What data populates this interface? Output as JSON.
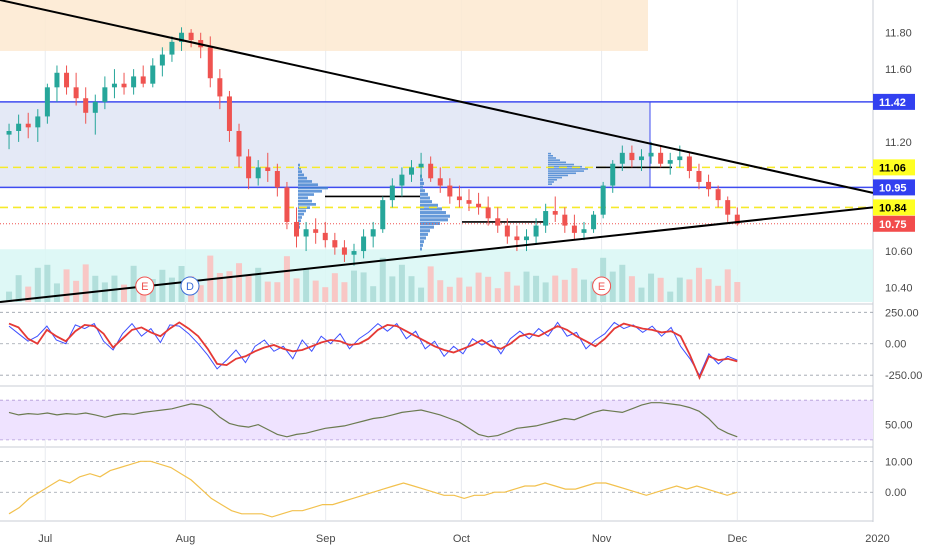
{
  "colors": {
    "up": "#26a69a",
    "down": "#ef5350",
    "volume_up": "#b2dfdb",
    "volume_down": "#f8c7c5",
    "axis_text": "#4a4a4a",
    "grid": "#e8eaef",
    "cci_primary": "#e53935",
    "cci_secondary": "#3f51ff",
    "rsi_line": "#6b7a50",
    "rsi_band": "#efe3ff",
    "momentum_line": "#f2c14e",
    "zone_orange": "#fde9d0",
    "zone_blue": "#dfe5f5",
    "zone_cyan": "#d8f7f5",
    "box_border": "#3f4cf0",
    "level_yellow": "#f6ea2a",
    "trendline": "#000000",
    "label_bg_blue": "#3240f0",
    "label_bg_yellow": "#ffff22",
    "label_bg_red": "#f24c4c",
    "volume_profile": "#3e7fd0"
  },
  "chart_data": [
    {
      "type": "candlestick",
      "title": "",
      "ylim": [
        10.32,
        11.98
      ],
      "y_ticks": [
        "11.80",
        "11.60",
        "11.20",
        "10.60",
        "10.40"
      ],
      "x_ticks": [
        "Jul",
        "Aug",
        "Sep",
        "Oct",
        "Nov",
        "Dec",
        "2020"
      ],
      "price_labels": [
        {
          "text": "11.42",
          "style": "blue"
        },
        {
          "text": "11.06",
          "style": "yellow"
        },
        {
          "text": "10.95",
          "style": "blue"
        },
        {
          "text": "10.84",
          "style": "yellow"
        },
        {
          "text": "10.75",
          "style": "red"
        }
      ],
      "horizontal_levels": [
        {
          "value": 11.06,
          "style": "yellow-dashed"
        },
        {
          "value": 10.84,
          "style": "yellow-dashed"
        },
        {
          "value": 10.75,
          "style": "red-dotted"
        }
      ],
      "zones": [
        {
          "name": "orange",
          "from": 11.7,
          "to": 11.98
        },
        {
          "name": "blue",
          "from": 10.95,
          "to": 11.42
        },
        {
          "name": "cyan",
          "from": 10.32,
          "to": 10.61
        }
      ],
      "event_markers": [
        {
          "label": "E",
          "date": "Jul 23"
        },
        {
          "label": "D",
          "date": "Aug 2"
        },
        {
          "label": "E",
          "date": "Nov 1"
        }
      ],
      "trendlines": [
        {
          "from": [
            "Jun 21",
            11.98
          ],
          "to": [
            "Dec 31",
            10.92
          ]
        },
        {
          "from": [
            "Jun 21",
            10.32
          ],
          "to": [
            "Dec 31",
            10.84
          ]
        }
      ],
      "ohlc_series": [
        [
          11.24,
          11.3,
          11.16,
          11.26
        ],
        [
          11.26,
          11.35,
          11.2,
          11.3
        ],
        [
          11.3,
          11.36,
          11.22,
          11.28
        ],
        [
          11.28,
          11.38,
          11.2,
          11.34
        ],
        [
          11.34,
          11.52,
          11.3,
          11.5
        ],
        [
          11.5,
          11.62,
          11.42,
          11.58
        ],
        [
          11.58,
          11.62,
          11.46,
          11.5
        ],
        [
          11.5,
          11.58,
          11.4,
          11.44
        ],
        [
          11.44,
          11.5,
          11.3,
          11.36
        ],
        [
          11.36,
          11.46,
          11.24,
          11.42
        ],
        [
          11.42,
          11.56,
          11.38,
          11.5
        ],
        [
          11.5,
          11.6,
          11.44,
          11.52
        ],
        [
          11.52,
          11.58,
          11.46,
          11.5
        ],
        [
          11.5,
          11.6,
          11.46,
          11.56
        ],
        [
          11.56,
          11.62,
          11.5,
          11.52
        ],
        [
          11.52,
          11.66,
          11.5,
          11.62
        ],
        [
          11.62,
          11.72,
          11.56,
          11.68
        ],
        [
          11.68,
          11.78,
          11.64,
          11.75
        ],
        [
          11.75,
          11.83,
          11.7,
          11.8
        ],
        [
          11.8,
          11.82,
          11.72,
          11.76
        ],
        [
          11.76,
          11.8,
          11.66,
          11.72
        ],
        [
          11.72,
          11.78,
          11.5,
          11.55
        ],
        [
          11.55,
          11.6,
          11.38,
          11.45
        ],
        [
          11.45,
          11.48,
          11.2,
          11.26
        ],
        [
          11.26,
          11.3,
          11.06,
          11.12
        ],
        [
          11.12,
          11.16,
          10.94,
          11.0
        ],
        [
          11.0,
          11.1,
          10.96,
          11.06
        ],
        [
          11.06,
          11.14,
          10.98,
          11.04
        ],
        [
          11.04,
          11.08,
          10.9,
          10.95
        ],
        [
          10.95,
          10.98,
          10.72,
          10.76
        ],
        [
          10.76,
          10.84,
          10.62,
          10.68
        ],
        [
          10.68,
          10.76,
          10.6,
          10.72
        ],
        [
          10.72,
          10.78,
          10.64,
          10.7
        ],
        [
          10.7,
          10.76,
          10.62,
          10.66
        ],
        [
          10.66,
          10.7,
          10.58,
          10.62
        ],
        [
          10.62,
          10.66,
          10.54,
          10.58
        ],
        [
          10.58,
          10.64,
          10.52,
          10.6
        ],
        [
          10.6,
          10.72,
          10.56,
          10.68
        ],
        [
          10.68,
          10.76,
          10.62,
          10.72
        ],
        [
          10.72,
          10.9,
          10.7,
          10.88
        ],
        [
          10.88,
          11.0,
          10.84,
          10.96
        ],
        [
          10.96,
          11.06,
          10.9,
          11.02
        ],
        [
          11.02,
          11.1,
          10.98,
          11.06
        ],
        [
          11.06,
          11.14,
          11.0,
          11.08
        ],
        [
          11.08,
          11.12,
          10.98,
          11.0
        ],
        [
          11.0,
          11.06,
          10.92,
          10.96
        ],
        [
          10.96,
          11.0,
          10.86,
          10.9
        ],
        [
          10.9,
          10.96,
          10.84,
          10.88
        ],
        [
          10.88,
          10.94,
          10.82,
          10.86
        ],
        [
          10.86,
          10.92,
          10.8,
          10.84
        ],
        [
          10.84,
          10.9,
          10.74,
          10.78
        ],
        [
          10.78,
          10.84,
          10.7,
          10.74
        ],
        [
          10.74,
          10.78,
          10.64,
          10.68
        ],
        [
          10.68,
          10.74,
          10.6,
          10.66
        ],
        [
          10.66,
          10.72,
          10.6,
          10.68
        ],
        [
          10.68,
          10.78,
          10.64,
          10.74
        ],
        [
          10.74,
          10.86,
          10.7,
          10.82
        ],
        [
          10.82,
          10.9,
          10.76,
          10.8
        ],
        [
          10.8,
          10.84,
          10.7,
          10.74
        ],
        [
          10.74,
          10.8,
          10.66,
          10.7
        ],
        [
          10.7,
          10.76,
          10.66,
          10.72
        ],
        [
          10.72,
          10.82,
          10.7,
          10.8
        ],
        [
          10.8,
          10.98,
          10.78,
          10.96
        ],
        [
          10.96,
          11.1,
          10.92,
          11.08
        ],
        [
          11.08,
          11.18,
          11.04,
          11.14
        ],
        [
          11.14,
          11.18,
          11.06,
          11.1
        ],
        [
          11.1,
          11.16,
          11.04,
          11.12
        ],
        [
          11.12,
          11.2,
          11.08,
          11.14
        ],
        [
          11.14,
          11.18,
          11.06,
          11.08
        ],
        [
          11.08,
          11.14,
          11.02,
          11.1
        ],
        [
          11.1,
          11.18,
          11.06,
          11.12
        ],
        [
          11.12,
          11.14,
          11.0,
          11.04
        ],
        [
          11.04,
          11.08,
          10.94,
          10.98
        ],
        [
          10.98,
          11.02,
          10.9,
          10.94
        ],
        [
          10.94,
          10.96,
          10.84,
          10.88
        ],
        [
          10.88,
          10.9,
          10.76,
          10.8
        ],
        [
          10.8,
          10.84,
          10.74,
          10.75
        ]
      ]
    },
    {
      "type": "line",
      "title": "",
      "ylim": [
        -320,
        300
      ],
      "y_ticks": [
        "250.00",
        "0.00",
        "-250.00"
      ],
      "series": [
        {
          "values": [
            160,
            130,
            40,
            0,
            110,
            60,
            20,
            100,
            150,
            140,
            80,
            -30,
            40,
            110,
            130,
            90,
            60,
            120,
            170,
            120,
            60,
            -40,
            -160,
            -170,
            -120,
            -100,
            -60,
            -30,
            -10,
            -40,
            -60,
            -50,
            -20,
            10,
            30,
            20,
            -10,
            0,
            40,
            110,
            150,
            140,
            100,
            60,
            20,
            -20,
            -50,
            -70,
            -40,
            -10,
            30,
            -20,
            -40,
            0,
            60,
            80,
            60,
            100,
            140,
            110,
            60,
            20,
            -20,
            40,
            120,
            160,
            140,
            120,
            110,
            90,
            100,
            60,
            -90,
            -270,
            -100,
            -130,
            -120,
            -140
          ]
        },
        {
          "values": [
            140,
            80,
            20,
            60,
            140,
            30,
            0,
            150,
            120,
            160,
            20,
            -50,
            80,
            160,
            60,
            120,
            10,
            150,
            140,
            80,
            0,
            -90,
            -200,
            -130,
            -50,
            -150,
            -20,
            30,
            -60,
            -20,
            -120,
            30,
            -60,
            60,
            0,
            80,
            -40,
            40,
            90,
            160,
            100,
            160,
            40,
            100,
            -40,
            20,
            -100,
            -20,
            -80,
            40,
            -10,
            30,
            -80,
            40,
            100,
            40,
            120,
            60,
            170,
            60,
            90,
            -40,
            30,
            80,
            170,
            120,
            150,
            90,
            140,
            60,
            130,
            -20,
            -120,
            -250,
            -80,
            -160,
            -100,
            -130
          ]
        }
      ]
    },
    {
      "type": "line",
      "title": "",
      "ylim": [
        15,
        110
      ],
      "y_ticks": [
        "50.00"
      ],
      "band": [
        25,
        90
      ],
      "series": [
        {
          "values": [
            70,
            66,
            68,
            67,
            69,
            66,
            68,
            67,
            69,
            66,
            62,
            66,
            68,
            67,
            70,
            72,
            74,
            76,
            80,
            84,
            82,
            76,
            62,
            52,
            48,
            46,
            50,
            42,
            34,
            30,
            34,
            36,
            40,
            44,
            46,
            48,
            52,
            56,
            60,
            62,
            66,
            70,
            72,
            74,
            70,
            66,
            60,
            54,
            44,
            34,
            30,
            32,
            38,
            44,
            46,
            48,
            52,
            56,
            60,
            58,
            64,
            70,
            74,
            72,
            70,
            76,
            82,
            86,
            86,
            84,
            82,
            78,
            72,
            60,
            44,
            36,
            30
          ]
        }
      ]
    },
    {
      "type": "line",
      "title": "",
      "ylim": [
        -9,
        14
      ],
      "y_ticks": [
        "10.00",
        "0.00"
      ],
      "series": [
        {
          "values": [
            -7,
            -5,
            -2,
            0,
            2,
            4,
            3,
            5,
            6,
            5,
            7,
            8,
            9,
            10,
            10,
            9,
            8,
            6,
            4,
            1,
            -2,
            -4,
            -6,
            -7,
            -7,
            -7,
            -8,
            -7,
            -6,
            -6,
            -5,
            -4,
            -4,
            -3,
            -2,
            -1,
            0,
            1,
            2,
            3,
            2,
            1,
            0,
            -1,
            -1,
            -2,
            -1,
            -1,
            0,
            0,
            1,
            2,
            2,
            3,
            2,
            1,
            1,
            2,
            3,
            3,
            2,
            1,
            0,
            -1,
            0,
            1,
            2,
            1,
            2,
            1,
            0,
            -1,
            0
          ]
        }
      ]
    }
  ]
}
